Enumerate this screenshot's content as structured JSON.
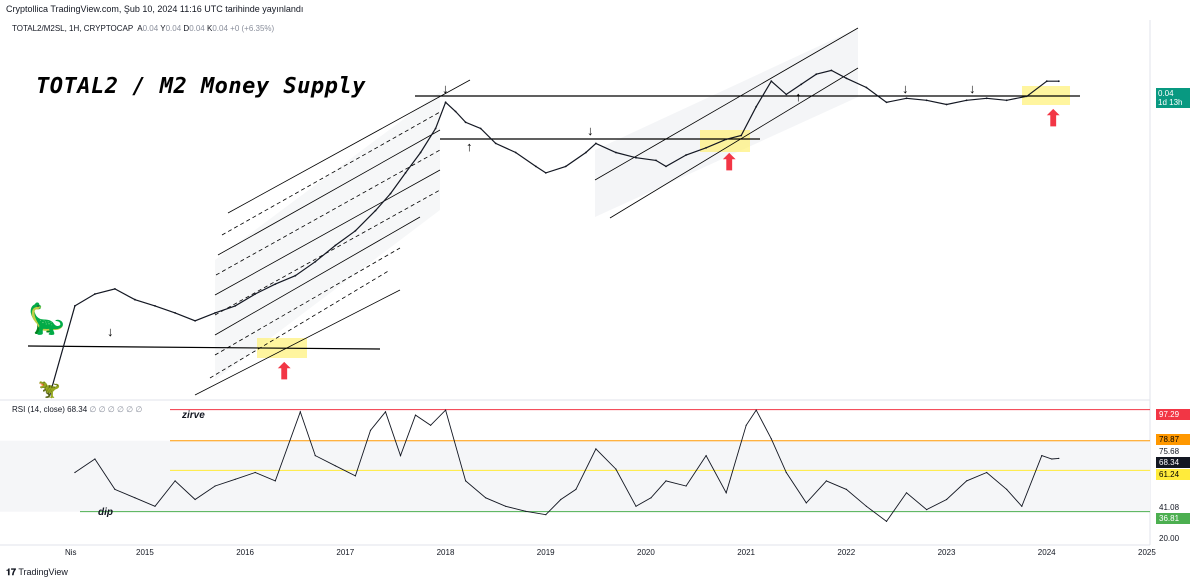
{
  "header": {
    "credit": "Cryptollica TradingView.com, Şub 10, 2024 11:16 UTC tarihinde yayınlandı",
    "symbol": "TOTAL2/M2SL, 1H, CRYPTOCAP",
    "ohlc": [
      {
        "label": "A",
        "value": "0.04"
      },
      {
        "label": "Y",
        "value": "0.04"
      },
      {
        "label": "D",
        "value": "0.04"
      },
      {
        "label": "K",
        "value": "0.04"
      }
    ],
    "change": "+0 (+6.35%)"
  },
  "annotation_title": "TOTAL2 / M2 Money Supply",
  "price_tag": {
    "value": "0.04",
    "countdown": "1d 13h",
    "color": "#089981"
  },
  "rsi": {
    "legend": "RSI (14, close)",
    "value": "68.34",
    "placeholders": "∅ ∅ ∅ ∅ ∅ ∅",
    "label_top": "zirve",
    "label_bottom": "dip",
    "levels": [
      {
        "value": 97.29,
        "label": "97.29",
        "color": "#f23645"
      },
      {
        "value": 78.87,
        "label": "78.87",
        "color": "#ff9800"
      },
      {
        "value": 61.24,
        "label": "61.24",
        "color": "#ffeb3b"
      },
      {
        "value": 36.81,
        "label": "36.81",
        "color": "#4caf50"
      }
    ],
    "scale_labels": [
      {
        "value": 75.68,
        "label": "75.68"
      },
      {
        "value": 41.08,
        "label": "41.08"
      },
      {
        "value": 20.0,
        "label": "20.00"
      }
    ],
    "current_tag": "68.34"
  },
  "footer": {
    "brand": "TradingView"
  },
  "chart_data": {
    "type": "line",
    "title": "TOTAL2 / M2 Money Supply",
    "x_ticks": [
      "Nis",
      "2015",
      "2016",
      "2017",
      "2018",
      "2019",
      "2020",
      "2021",
      "2022",
      "2023",
      "2024",
      "2025"
    ],
    "price_series": {
      "x": [
        2014.05,
        2014.3,
        2014.5,
        2014.7,
        2014.9,
        2015.1,
        2015.3,
        2015.5,
        2015.7,
        2015.9,
        2016.1,
        2016.3,
        2016.5,
        2016.7,
        2016.9,
        2017.1,
        2017.3,
        2017.45,
        2017.6,
        2017.75,
        2017.9,
        2018.0,
        2018.1,
        2018.2,
        2018.35,
        2018.5,
        2018.7,
        2018.9,
        2019.0,
        2019.2,
        2019.4,
        2019.5,
        2019.7,
        2019.9,
        2020.1,
        2020.2,
        2020.4,
        2020.6,
        2020.8,
        2020.95,
        2021.1,
        2021.25,
        2021.4,
        2021.55,
        2021.7,
        2021.85,
        2022.0,
        2022.2,
        2022.4,
        2022.6,
        2022.8,
        2023.0,
        2023.2,
        2023.4,
        2023.6,
        2023.8,
        2024.0,
        2024.12
      ],
      "y": [
        0.0002,
        0.0009,
        0.0011,
        0.0012,
        0.001,
        0.0009,
        0.0008,
        0.0007,
        0.0008,
        0.0009,
        0.0011,
        0.0013,
        0.0015,
        0.0019,
        0.0025,
        0.0032,
        0.0045,
        0.006,
        0.0085,
        0.012,
        0.018,
        0.028,
        0.024,
        0.02,
        0.018,
        0.014,
        0.012,
        0.0095,
        0.0085,
        0.0095,
        0.012,
        0.014,
        0.012,
        0.011,
        0.0105,
        0.0095,
        0.0115,
        0.013,
        0.015,
        0.016,
        0.026,
        0.04,
        0.032,
        0.038,
        0.045,
        0.048,
        0.042,
        0.036,
        0.028,
        0.03,
        0.029,
        0.027,
        0.029,
        0.03,
        0.029,
        0.031,
        0.04,
        0.04
      ]
    },
    "rsi_series": {
      "x": [
        2014.3,
        2014.5,
        2014.7,
        2014.9,
        2015.1,
        2015.3,
        2015.5,
        2015.7,
        2015.9,
        2016.1,
        2016.3,
        2016.55,
        2016.7,
        2016.9,
        2017.1,
        2017.25,
        2017.4,
        2017.55,
        2017.7,
        2017.85,
        2018.0,
        2018.2,
        2018.4,
        2018.6,
        2018.8,
        2019.0,
        2019.15,
        2019.3,
        2019.5,
        2019.7,
        2019.9,
        2020.05,
        2020.2,
        2020.4,
        2020.6,
        2020.8,
        2021.0,
        2021.1,
        2021.25,
        2021.4,
        2021.6,
        2021.8,
        2022.0,
        2022.2,
        2022.4,
        2022.6,
        2022.8,
        2023.0,
        2023.2,
        2023.4,
        2023.6,
        2023.75,
        2023.95,
        2024.05,
        2024.12
      ],
      "y": [
        60,
        68,
        50,
        45,
        40,
        55,
        44,
        52,
        56,
        60,
        55,
        96,
        70,
        64,
        58,
        85,
        96,
        70,
        94,
        88,
        97,
        55,
        45,
        40,
        37,
        35,
        44,
        50,
        74,
        62,
        40,
        45,
        55,
        52,
        70,
        48,
        88,
        97,
        80,
        60,
        42,
        55,
        50,
        40,
        31,
        48,
        38,
        44,
        55,
        60,
        50,
        40,
        70,
        68,
        68.34
      ]
    },
    "rsi_ylim": [
      20,
      100
    ]
  }
}
